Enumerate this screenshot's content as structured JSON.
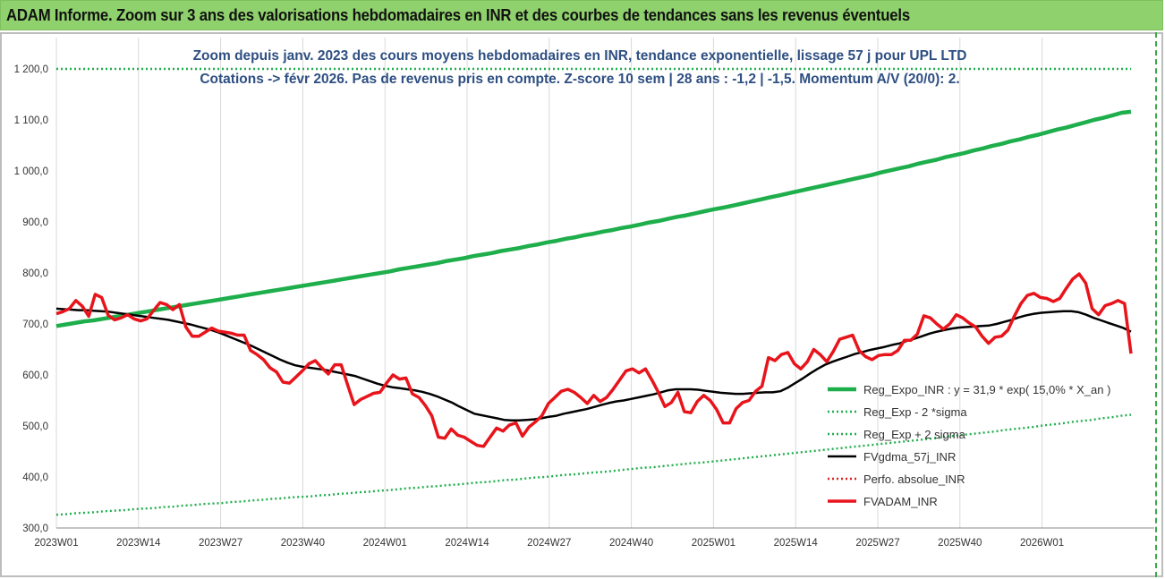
{
  "header": {
    "title": "ADAM Informe. Zoom sur 3 ans des valorisations hebdomadaires en INR et des courbes de tendances sans les revenus éventuels"
  },
  "chart_data": {
    "type": "line",
    "title": "Zoom depuis janv. 2023 des cours moyens hebdomadaires en INR, tendance exponentielle, lissage 57 j pour UPL LTD",
    "subtitle": "Cotations -> févr 2026.  Pas de revenus pris en compte. Z-score 10 sem | 28 ans : -1,2 | -1,5. Momentum A/V (20/0): 2.",
    "x_tick_labels": [
      "2023W01",
      "2023W14",
      "2023W27",
      "2023W40",
      "2024W01",
      "2024W14",
      "2024W27",
      "2024W40",
      "2025W01",
      "2025W14",
      "2025W27",
      "2025W40",
      "2026W01"
    ],
    "y_tick_labels": [
      "300,0",
      "400,0",
      "500,0",
      "600,0",
      "700,0",
      "800,0",
      "900,0",
      "1 000,0",
      "1 100,0",
      "1 200,0"
    ],
    "ylim": [
      300,
      1200
    ],
    "grid": "vertical",
    "legend_position": "right",
    "series": [
      {
        "name": "Reg_Expo_INR : y = 31,9 * exp( 15,0% *  X_an )",
        "color": "#1fae4c",
        "style": "solid-thick",
        "values": [
          696,
          699,
          702,
          705,
          707,
          710,
          713,
          716,
          719,
          722,
          725,
          728,
          731,
          734,
          737,
          740,
          743,
          746,
          749,
          752,
          755,
          758,
          761,
          764,
          767,
          770,
          773,
          776,
          779,
          782,
          785,
          788,
          791,
          794,
          797,
          800,
          803,
          807,
          810,
          813,
          816,
          819,
          823,
          826,
          829,
          833,
          836,
          839,
          843,
          846,
          849,
          853,
          856,
          860,
          863,
          867,
          870,
          874,
          877,
          881,
          884,
          888,
          891,
          895,
          899,
          902,
          906,
          910,
          913,
          917,
          921,
          925,
          928,
          932,
          936,
          940,
          944,
          948,
          952,
          956,
          960,
          964,
          968,
          972,
          976,
          980,
          984,
          988,
          992,
          997,
          1001,
          1005,
          1009,
          1014,
          1018,
          1022,
          1027,
          1031,
          1035,
          1040,
          1044,
          1049,
          1053,
          1058,
          1062,
          1067,
          1071,
          1076,
          1081,
          1085,
          1090,
          1095,
          1100,
          1104,
          1109,
          1114,
          1116
        ]
      },
      {
        "name": "Reg_Exp - 2 *sigma",
        "color": "#1fae4c",
        "style": "dotted",
        "values": [
          326,
          327,
          329,
          330,
          331,
          333,
          334,
          335,
          337,
          338,
          339,
          341,
          342,
          344,
          345,
          347,
          348,
          349,
          351,
          352,
          354,
          355,
          357,
          358,
          360,
          361,
          362,
          364,
          365,
          367,
          368,
          370,
          371,
          373,
          374,
          376,
          378,
          379,
          381,
          382,
          384,
          385,
          387,
          389,
          390,
          392,
          394,
          395,
          397,
          399,
          400,
          402,
          404,
          405,
          407,
          409,
          410,
          412,
          414,
          416,
          418,
          419,
          421,
          423,
          425,
          427,
          428,
          430,
          432,
          434,
          436,
          438,
          440,
          442,
          444,
          446,
          448,
          450,
          452,
          454,
          456,
          458,
          460,
          462,
          464,
          466,
          468,
          470,
          472,
          474,
          476,
          479,
          481,
          483,
          485,
          487,
          489,
          492,
          494,
          496,
          498,
          501,
          503,
          505,
          508,
          510,
          512,
          515,
          517,
          520,
          522
        ]
      },
      {
        "name": "Reg_Exp + 2 sigma",
        "color": "#1fae4c",
        "style": "dotted",
        "values": [
          1200,
          1200
        ]
      },
      {
        "name": "FVgdma_57j_INR",
        "color": "#000000",
        "style": "solid",
        "values": [
          730,
          729,
          728,
          727,
          727,
          726,
          725,
          724,
          722,
          720,
          718,
          716,
          714,
          712,
          710,
          708,
          705,
          702,
          699,
          695,
          691,
          687,
          682,
          676,
          670,
          664,
          658,
          651,
          644,
          637,
          630,
          624,
          619,
          616,
          614,
          612,
          610,
          607,
          604,
          601,
          598,
          593,
          588,
          583,
          579,
          576,
          574,
          572,
          570,
          567,
          563,
          558,
          552,
          546,
          538,
          531,
          524,
          521,
          518,
          515,
          512,
          511,
          511,
          512,
          513,
          515,
          518,
          520,
          524,
          527,
          530,
          533,
          537,
          541,
          545,
          548,
          550,
          553,
          556,
          559,
          562,
          566,
          570,
          572,
          572,
          572,
          571,
          569,
          567,
          565,
          564,
          563,
          563,
          564,
          565,
          566,
          566,
          568,
          575,
          584,
          593,
          603,
          612,
          620,
          626,
          631,
          636,
          641,
          645,
          649,
          652,
          655,
          659,
          662,
          667,
          671,
          676,
          681,
          685,
          688,
          691,
          693,
          694,
          695,
          696,
          697,
          700,
          704,
          708,
          713,
          717,
          720,
          722,
          723,
          724,
          725,
          725,
          723,
          718,
          712,
          707,
          702,
          697,
          692,
          685
        ]
      },
      {
        "name": "Perfo. absolue_INR",
        "color": "#e02020",
        "style": "dotted",
        "values": []
      },
      {
        "name": "FVADAM_INR",
        "color": "#e8141b",
        "style": "solid-thick",
        "values": [
          720,
          724,
          730,
          746,
          735,
          715,
          758,
          752,
          717,
          708,
          712,
          718,
          710,
          706,
          710,
          726,
          742,
          738,
          728,
          738,
          694,
          676,
          676,
          684,
          692,
          686,
          684,
          682,
          678,
          678,
          648,
          640,
          630,
          614,
          606,
          586,
          584,
          596,
          608,
          622,
          628,
          614,
          602,
          620,
          620,
          580,
          542,
          552,
          558,
          564,
          566,
          584,
          600,
          592,
          594,
          563,
          556,
          540,
          520,
          478,
          476,
          494,
          482,
          478,
          470,
          462,
          460,
          478,
          496,
          490,
          502,
          506,
          480,
          498,
          508,
          520,
          544,
          556,
          568,
          572,
          566,
          556,
          544,
          560,
          548,
          556,
          572,
          590,
          608,
          612,
          604,
          612,
          590,
          566,
          538,
          546,
          566,
          528,
          526,
          548,
          560,
          550,
          532,
          506,
          506,
          534,
          546,
          550,
          568,
          578,
          634,
          628,
          640,
          644,
          622,
          612,
          626,
          650,
          640,
          626,
          646,
          670,
          674,
          678,
          648,
          636,
          630,
          638,
          640,
          640,
          648,
          668,
          668,
          680,
          716,
          712,
          700,
          690,
          700,
          718,
          712,
          702,
          694,
          676,
          662,
          674,
          676,
          688,
          716,
          740,
          756,
          760,
          752,
          750,
          744,
          750,
          770,
          788,
          798,
          780,
          730,
          718,
          736,
          740,
          746,
          740,
          642
        ]
      }
    ]
  }
}
